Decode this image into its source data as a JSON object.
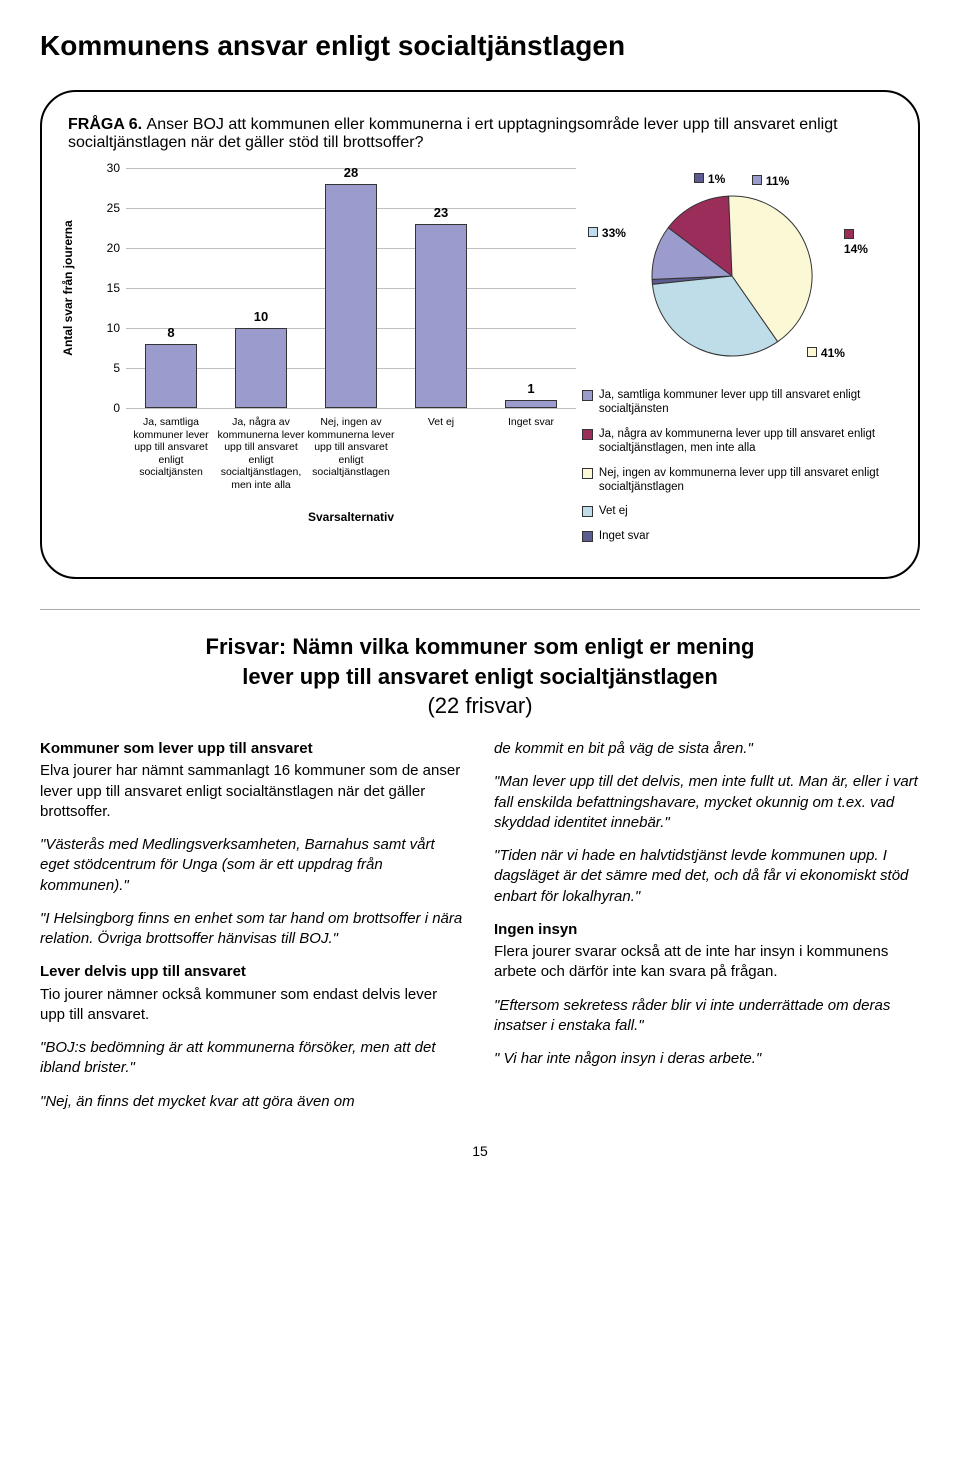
{
  "title": "Kommunens ansvar enligt socialtjänstlagen",
  "question": {
    "label": "FRÅGA 6.",
    "text": "Anser BOJ att kommunen eller kommunerna i ert upptagningsområde lever upp till ansvaret enligt socialtjänstlagen när det gäller stöd till brottsoffer?"
  },
  "bar_chart": {
    "type": "bar",
    "y_label": "Antal svar från jourerna",
    "x_title": "Svarsalternativ",
    "y_max": 30,
    "y_step": 5,
    "bar_fill": "#9b9bcd",
    "bar_border": "#333333",
    "grid_color": "#bfbfbf",
    "categories": [
      "Ja, samtliga kommuner lever upp till ansvaret enligt socialtjänsten",
      "Ja, några av kommunerna lever upp till ansvaret enligt socialtjänstlagen, men inte alla",
      "Nej, ingen av kommunerna lever upp till ansvaret enligt socialtjänstlagen",
      "Vet ej",
      "Inget svar"
    ],
    "values": [
      8,
      10,
      28,
      23,
      1
    ]
  },
  "pie_chart": {
    "type": "pie",
    "slices": [
      {
        "pct": 11,
        "label": "11%",
        "color": "#9b9bcd"
      },
      {
        "pct": 14,
        "label": "14%",
        "color": "#9b2d5a"
      },
      {
        "pct": 41,
        "label": "41%",
        "color": "#fbf8d6"
      },
      {
        "pct": 33,
        "label": "33%",
        "color": "#bedde8"
      },
      {
        "pct": 1,
        "label": "1%",
        "color": "#5b5b8f"
      }
    ],
    "border": "#333333",
    "legend": [
      {
        "color": "#9b9bcd",
        "text": "Ja, samtliga kommuner lever upp till ansvaret enligt socialtjänsten"
      },
      {
        "color": "#9b2d5a",
        "text": "Ja, några av kommunerna lever upp till ansvaret enligt socialtjänstlagen, men inte alla"
      },
      {
        "color": "#fbf8d6",
        "text": "Nej, ingen av kommunerna lever upp till ansvaret enligt socialtjänstlagen"
      },
      {
        "color": "#bedde8",
        "text": "Vet ej"
      },
      {
        "color": "#5b5b8f",
        "text": "Inget svar"
      }
    ]
  },
  "frisvar": {
    "heading_line1": "Frisvar: Nämn vilka kommuner som enligt er mening",
    "heading_line2": "lever upp till ansvaret enligt socialtjänstlagen",
    "count": "(22 frisvar)"
  },
  "left_col": {
    "h1": "Kommuner som lever upp till ansvaret",
    "p1": "Elva jourer har nämnt sammanlagt 16 kommuner som de anser lever upp till ansvaret enligt socialtänstlagen när det gäller brottsoffer.",
    "q1": "\"Västerås med Medlingsverksamheten, Barnahus samt vårt eget stödcentrum för Unga (som är ett uppdrag från kommunen).\"",
    "q2": "\"I Helsingborg finns en enhet som tar hand om brottsoffer i nära relation. Övriga brottsoffer hänvisas till BOJ.\"",
    "h2": "Lever delvis upp till ansvaret",
    "p2": "Tio jourer nämner också kommuner som endast delvis lever upp till ansvaret.",
    "q3": "\"BOJ:s bedömning är att kommunerna försöker, men att det ibland brister.\"",
    "q4": "\"Nej, än finns det mycket kvar att göra även om"
  },
  "right_col": {
    "q1": "de kommit en bit på väg de sista åren.\"",
    "q2": "\"Man lever upp till det delvis, men inte fullt ut. Man är, eller i vart fall enskilda befattningshavare, mycket okunnig om t.ex. vad skyddad identitet innebär.\"",
    "q3": "\"Tiden när vi hade en halvtidstjänst levde kommunen upp. I dagsläget är det sämre med det, och då får vi ekonomiskt stöd enbart för lokalhyran.\"",
    "h1": "Ingen insyn",
    "p1": "Flera jourer svarar också att de inte har insyn i kommunens arbete och därför inte kan svara på frågan.",
    "q4": "\"Eftersom sekretess råder blir vi inte underrättade om deras insatser i enstaka fall.\"",
    "q5": "\" Vi har inte någon insyn i deras arbete.\""
  },
  "page_number": "15"
}
